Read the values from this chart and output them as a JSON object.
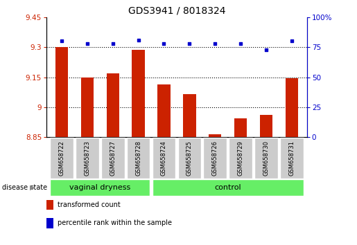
{
  "title": "GDS3941 / 8018324",
  "samples": [
    "GSM658722",
    "GSM658723",
    "GSM658727",
    "GSM658728",
    "GSM658724",
    "GSM658725",
    "GSM658726",
    "GSM658729",
    "GSM658730",
    "GSM658731"
  ],
  "bar_values": [
    9.3,
    9.15,
    9.17,
    9.285,
    9.115,
    9.065,
    8.865,
    8.945,
    8.96,
    9.145
  ],
  "dot_values": [
    80,
    78,
    78,
    81,
    78,
    78,
    78,
    78,
    73,
    80
  ],
  "ylim_left": [
    8.85,
    9.45
  ],
  "ylim_right": [
    0,
    100
  ],
  "yticks_left": [
    8.85,
    9.0,
    9.15,
    9.3,
    9.45
  ],
  "yticks_right": [
    0,
    25,
    50,
    75,
    100
  ],
  "ytick_labels_left": [
    "8.85",
    "9",
    "9.15",
    "9.3",
    "9.45"
  ],
  "ytick_labels_right": [
    "0",
    "25",
    "50",
    "75",
    "100%"
  ],
  "hlines": [
    9.0,
    9.15,
    9.3
  ],
  "group1_label": "vaginal dryness",
  "group2_label": "control",
  "group1_count": 4,
  "group2_count": 6,
  "bar_color": "#cc2200",
  "dot_color": "#0000cc",
  "bar_width": 0.5,
  "legend_bar_label": "transformed count",
  "legend_dot_label": "percentile rank within the sample",
  "disease_state_label": "disease state",
  "group_bg_color": "#66ee66",
  "sample_bg_color": "#cccccc",
  "title_fontsize": 10,
  "tick_fontsize": 7.5,
  "sample_fontsize": 6,
  "group_fontsize": 8,
  "legend_fontsize": 7,
  "ds_fontsize": 7
}
